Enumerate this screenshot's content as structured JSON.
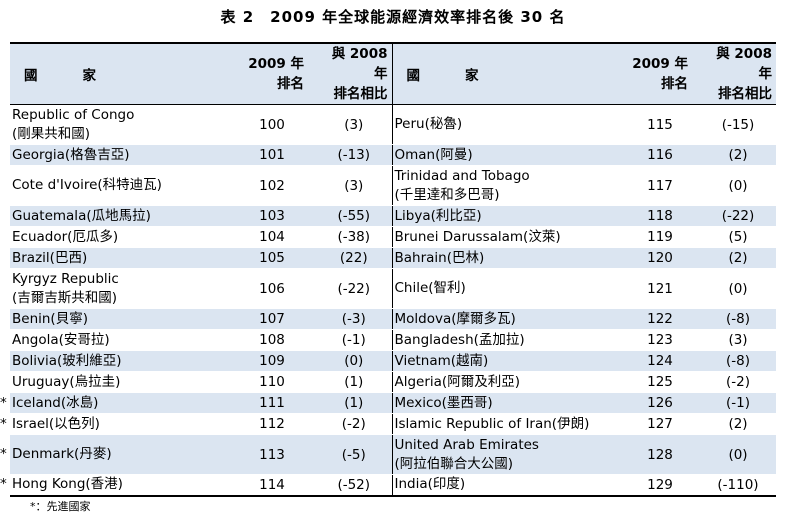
{
  "title": "表 2　2009 年全球能源經濟效率排名後 30 名",
  "header": {
    "country": "國　　家",
    "rank_line1": "2009 年",
    "rank_line2": "排名",
    "change_line1": "與 2008 年",
    "change_line2": "排名相比"
  },
  "left": [
    {
      "star": "",
      "name": "Republic of Congo",
      "zh": "(剛果共和國)",
      "rank": "100",
      "change": "(3)"
    },
    {
      "star": "",
      "name": "Georgia(格魯吉亞)",
      "zh": "",
      "rank": "101",
      "change": "(-13)"
    },
    {
      "star": "",
      "name": "Cote d'Ivoire(科特迪瓦)",
      "zh": "",
      "rank": "102",
      "change": "(3)"
    },
    {
      "star": "",
      "name": "Guatemala(瓜地馬拉)",
      "zh": "",
      "rank": "103",
      "change": "(-55)"
    },
    {
      "star": "",
      "name": "Ecuador(厄瓜多)",
      "zh": "",
      "rank": "104",
      "change": "(-38)"
    },
    {
      "star": "",
      "name": "Brazil(巴西)",
      "zh": "",
      "rank": "105",
      "change": "(22)"
    },
    {
      "star": "",
      "name": "Kyrgyz Republic",
      "zh": "(吉爾吉斯共和國)",
      "rank": "106",
      "change": "(-22)"
    },
    {
      "star": "",
      "name": "Benin(貝寧)",
      "zh": "",
      "rank": "107",
      "change": "(-3)"
    },
    {
      "star": "",
      "name": "Angola(安哥拉)",
      "zh": "",
      "rank": "108",
      "change": "(-1)"
    },
    {
      "star": "",
      "name": "Bolivia(玻利維亞)",
      "zh": "",
      "rank": "109",
      "change": "(0)"
    },
    {
      "star": "",
      "name": "Uruguay(烏拉圭)",
      "zh": "",
      "rank": "110",
      "change": "(1)"
    },
    {
      "star": "*",
      "name": "Iceland(冰島)",
      "zh": "",
      "rank": "111",
      "change": "(1)"
    },
    {
      "star": "*",
      "name": "Israel(以色列)",
      "zh": "",
      "rank": "112",
      "change": "(-2)"
    },
    {
      "star": "*",
      "name": "Denmark(丹麥)",
      "zh": "",
      "rank": "113",
      "change": "(-5)"
    },
    {
      "star": "*",
      "name": "Hong Kong(香港)",
      "zh": "",
      "rank": "114",
      "change": "(-52)"
    }
  ],
  "right": [
    {
      "name": "Peru(秘魯)",
      "zh": "",
      "rank": "115",
      "change": "(-15)"
    },
    {
      "name": "Oman(阿曼)",
      "zh": "",
      "rank": "116",
      "change": "(2)"
    },
    {
      "name": "Trinidad and Tobago",
      "zh": "(千里達和多巴哥)",
      "rank": "117",
      "change": "(0)"
    },
    {
      "name": "Libya(利比亞)",
      "zh": "",
      "rank": "118",
      "change": "(-22)"
    },
    {
      "name": "Brunei Darussalam(汶萊)",
      "zh": "",
      "rank": "119",
      "change": "(5)"
    },
    {
      "name": "Bahrain(巴林)",
      "zh": "",
      "rank": "120",
      "change": "(2)"
    },
    {
      "name": "Chile(智利)",
      "zh": "",
      "rank": "121",
      "change": "(0)"
    },
    {
      "name": "Moldova(摩爾多瓦)",
      "zh": "",
      "rank": "122",
      "change": "(-8)"
    },
    {
      "name": "Bangladesh(孟加拉)",
      "zh": "",
      "rank": "123",
      "change": "(3)"
    },
    {
      "name": "Vietnam(越南)",
      "zh": "",
      "rank": "124",
      "change": "(-8)"
    },
    {
      "name": "Algeria(阿爾及利亞)",
      "zh": "",
      "rank": "125",
      "change": "(-2)"
    },
    {
      "name": "Mexico(墨西哥)",
      "zh": "",
      "rank": "126",
      "change": "(-1)"
    },
    {
      "name": "Islamic Republic of Iran(伊朗)",
      "zh": "",
      "rank": "127",
      "change": "(2)"
    },
    {
      "name": "United Arab Emirates",
      "zh": "(阿拉伯聯合大公國)",
      "rank": "128",
      "change": "(0)"
    },
    {
      "name": "India(印度)",
      "zh": "",
      "rank": "129",
      "change": "(-110)"
    }
  ],
  "row_heights": [],
  "shaded_rows": [
    1,
    3,
    5,
    7,
    9,
    11,
    13
  ],
  "note": "*：先進國家",
  "colors": {
    "shade": "#dbe5f1",
    "rule": "#000000"
  }
}
